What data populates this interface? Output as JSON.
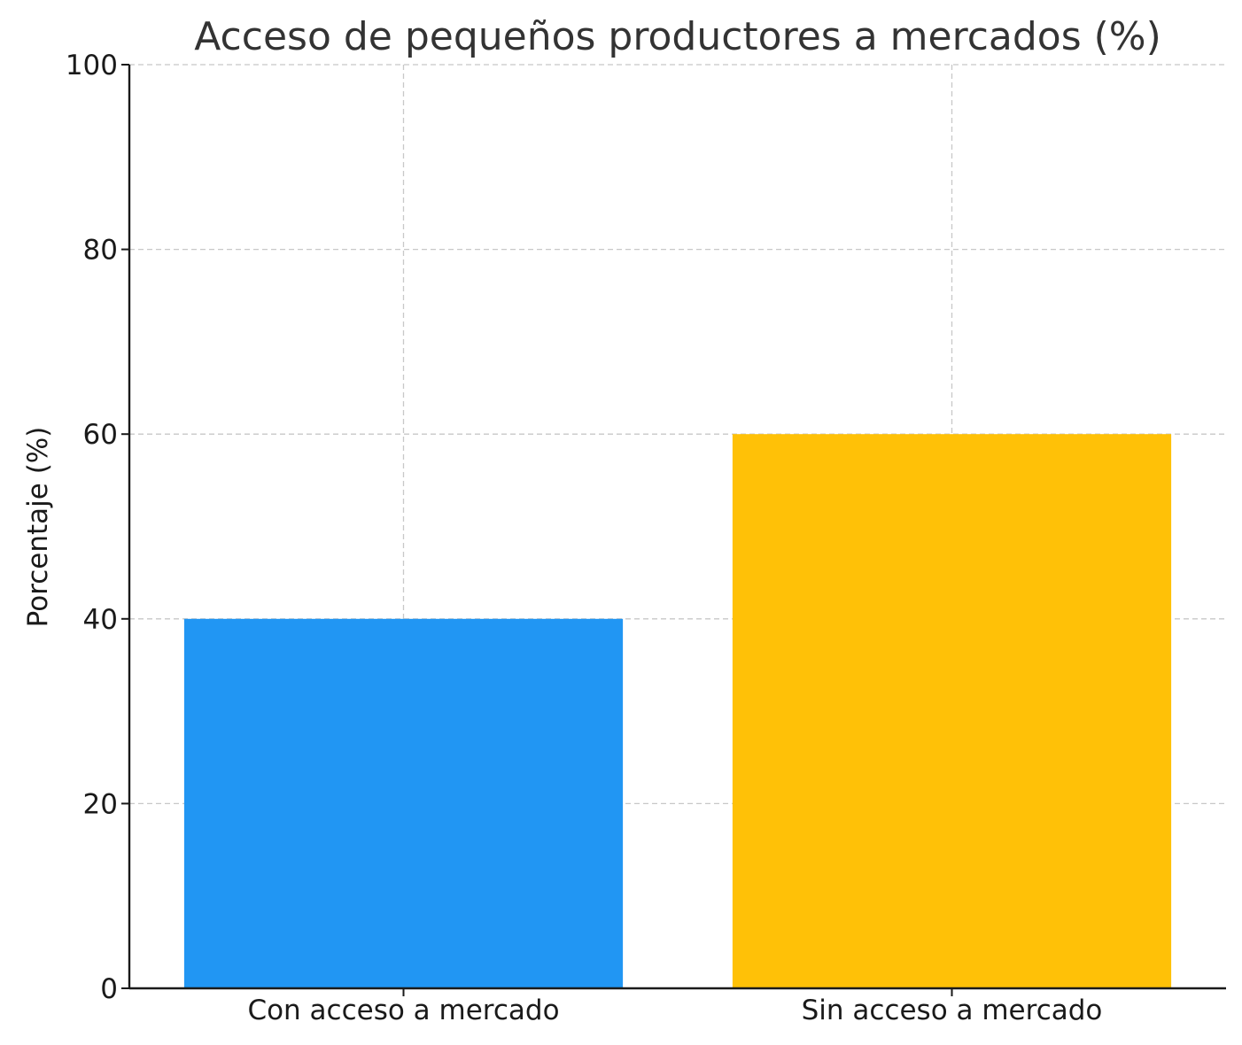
{
  "chart_data": {
    "type": "bar",
    "title": "Acceso de pequeños productores a mercados (%)",
    "xlabel": "",
    "ylabel": "Porcentaje (%)",
    "categories": [
      "Con acceso a mercado",
      "Sin acceso a mercado"
    ],
    "values": [
      40,
      60
    ],
    "colors": [
      "#2196F3",
      "#FFC107"
    ],
    "ylim": [
      0,
      100
    ],
    "yticks": [
      "0",
      "20",
      "40",
      "60",
      "80",
      "100"
    ],
    "grid": true,
    "legend": "none"
  }
}
